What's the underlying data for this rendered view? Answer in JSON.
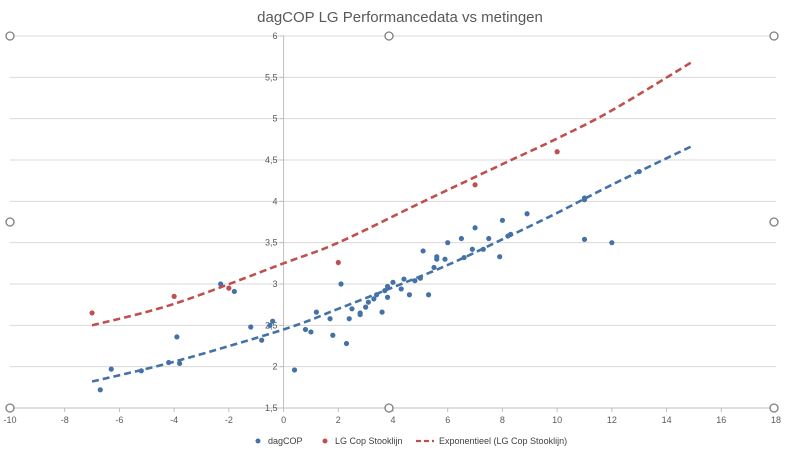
{
  "chart_data": {
    "type": "scatter",
    "title": "dagCOP LG Performancedata vs metingen",
    "xlabel": "",
    "ylabel": "",
    "xlim": [
      -10,
      18
    ],
    "ylim": [
      1.5,
      6
    ],
    "x_ticks": [
      -10,
      -8,
      -6,
      -4,
      -2,
      0,
      2,
      4,
      6,
      8,
      10,
      12,
      14,
      16,
      18
    ],
    "y_ticks": [
      1.5,
      2,
      2.5,
      3,
      3.5,
      4,
      4.5,
      5,
      5.5,
      6
    ],
    "x_tick_labels": [
      "-10",
      "-8",
      "-6",
      "-4",
      "-2",
      "0",
      "2",
      "4",
      "6",
      "8",
      "10",
      "12",
      "14",
      "16",
      "18"
    ],
    "y_tick_labels": [
      "1,5",
      "2",
      "2,5",
      "3",
      "3,5",
      "4",
      "4,5",
      "5",
      "5,5",
      "6"
    ],
    "x_axis_at_y": 1.5,
    "y_axis_at_x": 0,
    "grid": true,
    "legend_position": "bottom",
    "series": [
      {
        "name": "dagCOP",
        "color": "#4472A8",
        "style": "markers",
        "points": [
          [
            -6.7,
            1.72
          ],
          [
            -6.3,
            1.97
          ],
          [
            -5.2,
            1.95
          ],
          [
            -4.2,
            2.05
          ],
          [
            -3.9,
            2.36
          ],
          [
            -3.8,
            2.04
          ],
          [
            -2.3,
            3.0
          ],
          [
            -1.8,
            2.91
          ],
          [
            -1.2,
            2.48
          ],
          [
            -0.8,
            2.32
          ],
          [
            -0.5,
            2.5
          ],
          [
            -0.4,
            2.55
          ],
          [
            0.4,
            1.96
          ],
          [
            0.8,
            2.45
          ],
          [
            1.0,
            2.42
          ],
          [
            1.2,
            2.66
          ],
          [
            1.7,
            2.58
          ],
          [
            1.8,
            2.38
          ],
          [
            2.1,
            3.0
          ],
          [
            2.3,
            2.28
          ],
          [
            2.4,
            2.58
          ],
          [
            2.5,
            2.7
          ],
          [
            2.8,
            2.63
          ],
          [
            2.8,
            2.65
          ],
          [
            3.0,
            2.72
          ],
          [
            3.1,
            2.78
          ],
          [
            3.3,
            2.82
          ],
          [
            3.4,
            2.87
          ],
          [
            3.6,
            2.66
          ],
          [
            3.7,
            2.92
          ],
          [
            3.8,
            2.84
          ],
          [
            3.8,
            2.97
          ],
          [
            4.0,
            3.02
          ],
          [
            4.3,
            2.94
          ],
          [
            4.4,
            3.06
          ],
          [
            4.6,
            2.87
          ],
          [
            4.8,
            3.04
          ],
          [
            5.0,
            3.07
          ],
          [
            5.1,
            3.4
          ],
          [
            5.3,
            2.87
          ],
          [
            5.5,
            3.2
          ],
          [
            5.6,
            3.3
          ],
          [
            5.6,
            3.33
          ],
          [
            5.9,
            3.3
          ],
          [
            6.0,
            3.5
          ],
          [
            6.5,
            3.55
          ],
          [
            6.6,
            3.32
          ],
          [
            6.9,
            3.42
          ],
          [
            7.0,
            3.68
          ],
          [
            7.3,
            3.42
          ],
          [
            7.5,
            3.55
          ],
          [
            7.9,
            3.33
          ],
          [
            8.0,
            3.77
          ],
          [
            8.2,
            3.58
          ],
          [
            8.3,
            3.6
          ],
          [
            8.9,
            3.85
          ],
          [
            11.0,
            4.04
          ],
          [
            11.0,
            4.02
          ],
          [
            11.0,
            3.54
          ],
          [
            12.0,
            3.5
          ],
          [
            13.0,
            4.36
          ]
        ]
      },
      {
        "name": "LG Cop Stooklijn",
        "color": "#C0504D",
        "style": "markers",
        "points": [
          [
            -7,
            2.65
          ],
          [
            -4,
            2.85
          ],
          [
            -2,
            2.95
          ],
          [
            2,
            3.26
          ],
          [
            7,
            4.2
          ],
          [
            10,
            4.6
          ]
        ]
      },
      {
        "name": "Exponentieel (LG Cop Stooklijn)",
        "color": "#C0504D",
        "style": "dashed-line",
        "points": [
          [
            -7,
            2.5
          ],
          [
            -4,
            2.76
          ],
          [
            0,
            3.25
          ],
          [
            2,
            3.5
          ],
          [
            5,
            3.98
          ],
          [
            8,
            4.45
          ],
          [
            10,
            4.76
          ],
          [
            12,
            5.1
          ],
          [
            15,
            5.7
          ]
        ]
      },
      {
        "color": "#4472A8",
        "style": "dashed-line",
        "points": [
          [
            -7,
            1.82
          ],
          [
            -4,
            2.06
          ],
          [
            0,
            2.45
          ],
          [
            2,
            2.7
          ],
          [
            4,
            2.96
          ],
          [
            6,
            3.23
          ],
          [
            8,
            3.54
          ],
          [
            10,
            3.86
          ],
          [
            12,
            4.2
          ],
          [
            15,
            4.68
          ]
        ]
      }
    ]
  }
}
